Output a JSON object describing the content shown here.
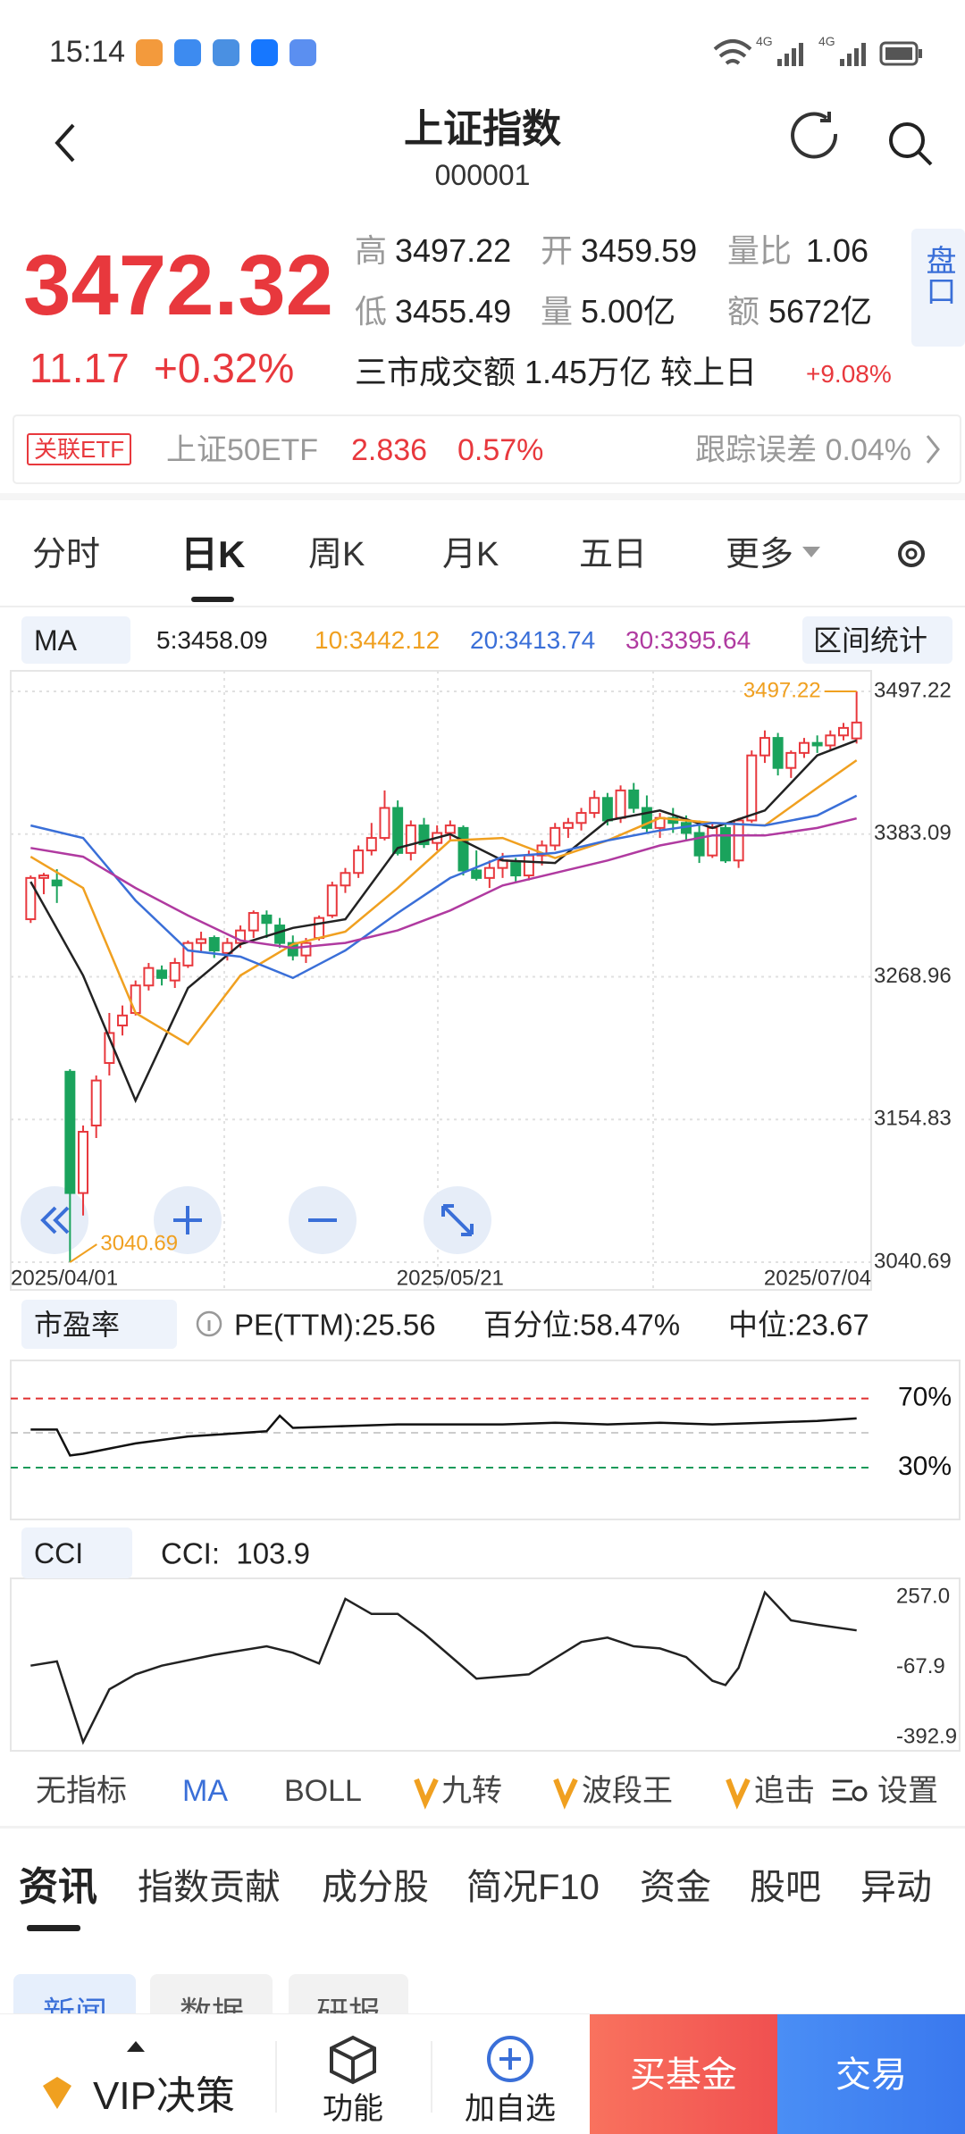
{
  "status_bar": {
    "time": "15:14",
    "network": [
      "4G",
      "4G"
    ]
  },
  "header": {
    "title": "上证指数",
    "code": "000001"
  },
  "quote": {
    "price": "3472.32",
    "change": "11.17",
    "change_pct": "+0.32%",
    "stats": [
      [
        "高",
        "3497.22"
      ],
      [
        "开",
        "3459.59"
      ],
      [
        "量比",
        "1.06"
      ],
      [
        "低",
        "3455.49"
      ],
      [
        "量",
        "5.00亿"
      ],
      [
        "额",
        "5672亿"
      ]
    ],
    "turnover": "三市成交额 1.45万亿 较上日",
    "turnover_change": "+9.08%",
    "side_button": "盘口"
  },
  "etf": {
    "tag": "关联ETF",
    "name": "上证50ETF",
    "price": "2.836",
    "pct": "0.57%",
    "tracking": "跟踪误差 0.04%"
  },
  "period_tabs": [
    "分时",
    "日K",
    "周K",
    "月K",
    "五日",
    "更多"
  ],
  "chart_data": [
    {
      "type": "candlestick",
      "indicator": "MA",
      "stats_button": "区间统计",
      "up_color": "#e8383d",
      "down_color": "#1aa35c",
      "grid": true,
      "ylim": [
        3040.69,
        3497.22
      ],
      "yticks": [
        3040.69,
        3154.83,
        3268.96,
        3383.09,
        3497.22
      ],
      "xlim": [
        -0.5,
        63.5
      ],
      "xticks": [
        {
          "value": 0,
          "label": "2025/04/01"
        },
        {
          "value": 32,
          "label": "2025/05/21"
        },
        {
          "value": 63,
          "label": "2025/07/04"
        }
      ],
      "high_label": 3497.22,
      "low_label": 3040.69,
      "candles": [
        [
          3315,
          3350,
          3312,
          3348
        ],
        [
          3348,
          3352,
          3335,
          3350
        ],
        [
          3346,
          3355,
          3328,
          3342
        ],
        [
          3193,
          3195,
          3040.69,
          3096
        ],
        [
          3096,
          3150,
          3078,
          3145
        ],
        [
          3150,
          3190,
          3140,
          3186
        ],
        [
          3200,
          3240,
          3190,
          3224
        ],
        [
          3230,
          3246,
          3222,
          3238
        ],
        [
          3240,
          3266,
          3238,
          3262
        ],
        [
          3262,
          3280,
          3258,
          3276
        ],
        [
          3274,
          3278,
          3262,
          3268
        ],
        [
          3266,
          3284,
          3260,
          3280
        ],
        [
          3278,
          3298,
          3276,
          3296
        ],
        [
          3296,
          3305,
          3288,
          3299
        ],
        [
          3300,
          3302,
          3284,
          3290
        ],
        [
          3288,
          3300,
          3282,
          3296
        ],
        [
          3296,
          3310,
          3292,
          3306
        ],
        [
          3306,
          3322,
          3300,
          3320
        ],
        [
          3318,
          3322,
          3300,
          3312
        ],
        [
          3310,
          3316,
          3292,
          3296
        ],
        [
          3296,
          3302,
          3282,
          3286
        ],
        [
          3286,
          3300,
          3280,
          3296
        ],
        [
          3300,
          3318,
          3298,
          3316
        ],
        [
          3318,
          3345,
          3316,
          3342
        ],
        [
          3342,
          3356,
          3336,
          3352
        ],
        [
          3352,
          3374,
          3348,
          3370
        ],
        [
          3370,
          3392,
          3366,
          3380
        ],
        [
          3380,
          3418,
          3378,
          3404
        ],
        [
          3404,
          3410,
          3366,
          3368
        ],
        [
          3368,
          3394,
          3362,
          3390
        ],
        [
          3390,
          3396,
          3372,
          3375
        ],
        [
          3376,
          3390,
          3370,
          3384
        ],
        [
          3384,
          3394,
          3378,
          3390
        ],
        [
          3388,
          3390,
          3350,
          3354
        ],
        [
          3354,
          3370,
          3346,
          3348
        ],
        [
          3348,
          3362,
          3340,
          3356
        ],
        [
          3356,
          3368,
          3348,
          3362
        ],
        [
          3360,
          3364,
          3344,
          3350
        ],
        [
          3350,
          3370,
          3346,
          3366
        ],
        [
          3366,
          3378,
          3358,
          3374
        ],
        [
          3374,
          3392,
          3370,
          3388
        ],
        [
          3388,
          3396,
          3380,
          3392
        ],
        [
          3392,
          3404,
          3386,
          3400
        ],
        [
          3400,
          3418,
          3396,
          3412
        ],
        [
          3412,
          3416,
          3390,
          3394
        ],
        [
          3396,
          3422,
          3392,
          3418
        ],
        [
          3418,
          3424,
          3400,
          3404
        ],
        [
          3404,
          3414,
          3384,
          3388
        ],
        [
          3388,
          3400,
          3380,
          3396
        ],
        [
          3396,
          3404,
          3384,
          3392
        ],
        [
          3392,
          3398,
          3378,
          3384
        ],
        [
          3384,
          3394,
          3360,
          3366
        ],
        [
          3366,
          3392,
          3364,
          3388
        ],
        [
          3388,
          3392,
          3360,
          3362
        ],
        [
          3362,
          3396,
          3356,
          3394
        ],
        [
          3394,
          3450,
          3392,
          3446
        ],
        [
          3446,
          3466,
          3440,
          3460
        ],
        [
          3460,
          3464,
          3430,
          3436
        ],
        [
          3436,
          3450,
          3428,
          3448
        ],
        [
          3448,
          3460,
          3444,
          3456
        ],
        [
          3456,
          3462,
          3448,
          3454
        ],
        [
          3454,
          3466,
          3450,
          3462
        ],
        [
          3462,
          3472,
          3458,
          3468
        ],
        [
          3459.59,
          3497.22,
          3455.49,
          3472.32
        ]
      ],
      "ma_x": [
        0,
        4,
        8,
        12,
        16,
        20,
        24,
        28,
        32,
        36,
        40,
        44,
        48,
        52,
        56,
        60,
        63
      ],
      "series": [
        {
          "name": "5:3458.09",
          "color": "#222222",
          "values": [
            3345,
            3270,
            3170,
            3260,
            3295,
            3308,
            3315,
            3372,
            3383,
            3362,
            3360,
            3394,
            3402,
            3388,
            3402,
            3446,
            3458.09
          ]
        },
        {
          "name": "10:3442.12",
          "color": "#f0a020",
          "values": [
            3365,
            3340,
            3240,
            3215,
            3270,
            3295,
            3305,
            3340,
            3378,
            3380,
            3364,
            3378,
            3396,
            3392,
            3390,
            3420,
            3442.12
          ]
        },
        {
          "name": "20:3413.74",
          "color": "#3a6fd8",
          "values": [
            3390,
            3380,
            3330,
            3290,
            3285,
            3268,
            3290,
            3320,
            3348,
            3365,
            3368,
            3378,
            3386,
            3392,
            3390,
            3398,
            3413.74
          ]
        },
        {
          "name": "30:3395.64",
          "color": "#b03aa0",
          "values": [
            3372,
            3365,
            3340,
            3318,
            3298,
            3292,
            3296,
            3306,
            3322,
            3342,
            3352,
            3362,
            3374,
            3382,
            3382,
            3388,
            3395.64
          ]
        }
      ]
    },
    {
      "type": "line",
      "selector": "市盈率",
      "info": "PE(TTM):25.56",
      "percentile": "百分位:58.47%",
      "median": "中位:23.67",
      "color": "#111111",
      "xlim": [
        -0.5,
        63.5
      ],
      "ylim": [
        0,
        92
      ],
      "yticks": [
        {
          "value": 30,
          "label": "30%"
        },
        {
          "value": 70,
          "label": "70%"
        }
      ],
      "tick_colors": [
        "#1a9a5a",
        "#e03030"
      ],
      "x": [
        0,
        2,
        3,
        4,
        8,
        12,
        16,
        18,
        19,
        20,
        24,
        28,
        32,
        36,
        40,
        44,
        48,
        52,
        56,
        60,
        63
      ],
      "values": [
        52,
        52,
        37,
        38,
        44,
        48,
        50,
        51,
        60,
        53,
        54,
        55,
        55,
        55,
        56,
        55,
        56,
        55,
        56,
        57,
        58.47
      ]
    },
    {
      "type": "line",
      "selector": "CCI",
      "info": "CCI:  103.9",
      "color": "#222222",
      "xlim": [
        -0.5,
        63.5
      ],
      "ylim": [
        -455,
        345
      ],
      "yticks": [
        -392.9,
        -67.9,
        {
          "value": 257,
          "label": "257.0"
        }
      ],
      "x": [
        0,
        2,
        4,
        6,
        8,
        10,
        14,
        18,
        20,
        22,
        24,
        26,
        28,
        30,
        34,
        38,
        42,
        44,
        46,
        48,
        50,
        52,
        53,
        54,
        56,
        58,
        60,
        63
      ],
      "values": [
        -60,
        -40,
        -415,
        -170,
        -100,
        -60,
        -10,
        30,
        0,
        -50,
        250,
        180,
        180,
        90,
        -120,
        -100,
        50,
        70,
        30,
        20,
        -20,
        -130,
        -150,
        -70,
        280,
        150,
        130,
        103.9
      ]
    }
  ],
  "indicator_tabs": [
    "无指标",
    "MA",
    "BOLL",
    "九转",
    "波段王",
    "追击",
    "设置"
  ],
  "section_tabs": [
    "资讯",
    "指数贡献",
    "成分股",
    "简况F10",
    "资金",
    "股吧",
    "异动"
  ],
  "sub_tabs": [
    "新闻",
    "数据",
    "研报"
  ],
  "bottom_bar": {
    "vip": "VIP决策",
    "function": "功能",
    "watch": "加自选",
    "fund": "买基金",
    "trade": "交易"
  }
}
